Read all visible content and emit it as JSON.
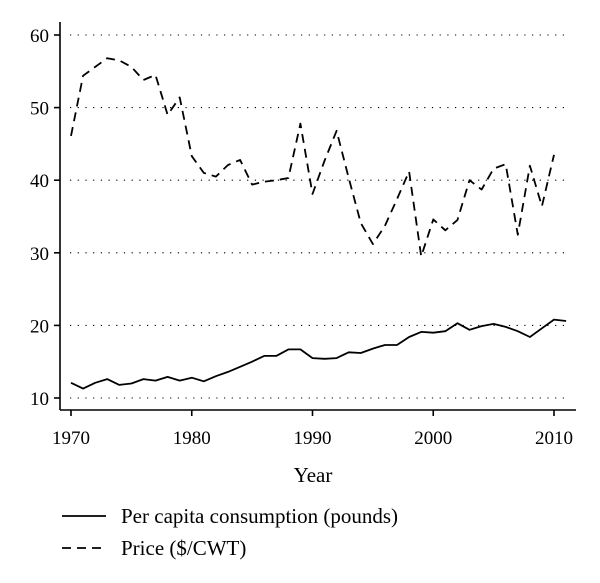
{
  "chart_data": {
    "type": "line",
    "title": "",
    "xlabel": "Year",
    "ylabel": "",
    "xlim": [
      1970,
      2011
    ],
    "ylim": [
      10,
      60
    ],
    "grid": "horizontal dotted",
    "legend_position": "bottom",
    "x_ticks": [
      1970,
      1980,
      1990,
      2000,
      2010
    ],
    "y_ticks": [
      10,
      20,
      30,
      40,
      50,
      60
    ],
    "x_tick_labels": [
      "1970",
      "1980",
      "1990",
      "2000",
      "2010"
    ],
    "y_tick_labels": [
      "10",
      "20",
      "30",
      "40",
      "50",
      "60"
    ],
    "series": [
      {
        "name": "Per capita consumption (pounds)",
        "style": "solid",
        "x": [
          1970,
          1971,
          1972,
          1973,
          1974,
          1975,
          1976,
          1977,
          1978,
          1979,
          1980,
          1981,
          1982,
          1983,
          1984,
          1985,
          1986,
          1987,
          1988,
          1989,
          1990,
          1991,
          1992,
          1993,
          1994,
          1995,
          1996,
          1997,
          1998,
          1999,
          2000,
          2001,
          2002,
          2003,
          2004,
          2005,
          2006,
          2007,
          2008,
          2009,
          2010,
          2011
        ],
        "values": [
          12.1,
          11.3,
          12.1,
          12.6,
          11.8,
          12.0,
          12.6,
          12.4,
          12.9,
          12.4,
          12.8,
          12.3,
          13.0,
          13.6,
          14.3,
          15.0,
          15.8,
          15.8,
          16.7,
          16.7,
          15.5,
          15.4,
          15.5,
          16.3,
          16.2,
          16.8,
          17.3,
          17.3,
          18.4,
          19.1,
          19.0,
          19.2,
          20.3,
          19.4,
          19.9,
          20.2,
          19.8,
          19.2,
          18.4,
          19.6,
          20.8,
          20.6
        ]
      },
      {
        "name": "Price ($/CWT)",
        "style": "dashed",
        "x": [
          1970,
          1971,
          1972,
          1973,
          1974,
          1975,
          1976,
          1977,
          1978,
          1979,
          1980,
          1981,
          1982,
          1983,
          1984,
          1985,
          1986,
          1987,
          1988,
          1989,
          1990,
          1991,
          1992,
          1993,
          1994,
          1995,
          1996,
          1997,
          1998,
          1999,
          2000,
          2001,
          2002,
          2003,
          2004,
          2005,
          2006,
          2007,
          2008,
          2009,
          2010
        ],
        "values": [
          46.1,
          54.4,
          55.6,
          56.8,
          56.5,
          55.6,
          53.8,
          54.5,
          49.0,
          51.4,
          43.3,
          41.0,
          40.5,
          42.1,
          42.8,
          39.4,
          39.8,
          40.0,
          40.3,
          47.8,
          38.1,
          42.7,
          46.8,
          40.3,
          34.1,
          31.2,
          33.7,
          37.4,
          41.2,
          29.5,
          34.6,
          33.1,
          34.5,
          40.0,
          38.7,
          41.6,
          42.2,
          32.5,
          42.0,
          36.4,
          43.5
        ]
      }
    ]
  }
}
